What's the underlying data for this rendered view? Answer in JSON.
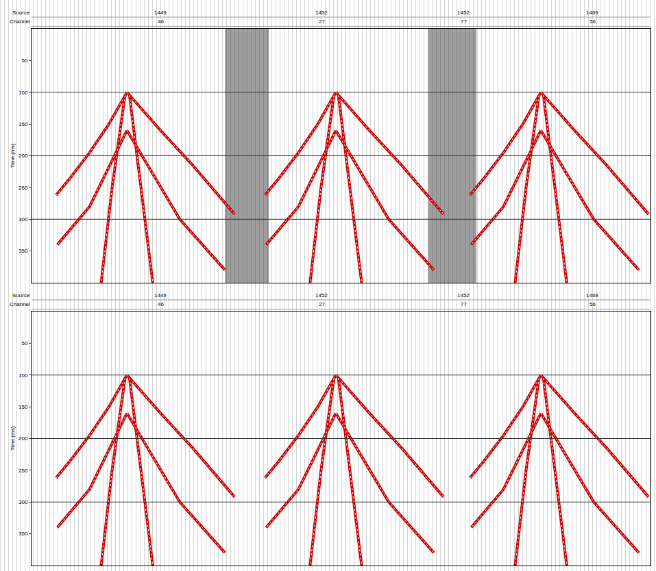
{
  "chart_data": [
    {
      "type": "line",
      "header": [
        {
          "label": "Source",
          "values": [
            {
              "x": 200,
              "text": "1449"
            },
            {
              "x": 450,
              "text": "1452"
            },
            {
              "x": 670,
              "text": "1452"
            },
            {
              "x": 870,
              "text": "1469"
            }
          ]
        },
        {
          "label": "Channel",
          "values": [
            {
              "x": 200,
              "text": "46"
            },
            {
              "x": 450,
              "text": "27"
            },
            {
              "x": 670,
              "text": "77"
            },
            {
              "x": 870,
              "text": "56"
            }
          ]
        }
      ],
      "ylabel": "Time (ms)",
      "xlim": [
        0,
        960
      ],
      "ylim": [
        0,
        400
      ],
      "yticks": [
        50,
        100,
        150,
        200,
        250,
        300,
        350
      ],
      "grid": true,
      "grid_lines": [
        100,
        200,
        300
      ],
      "tick_labels": "y",
      "color": "#cc0000",
      "noise_zones": [
        [
          300,
          368
        ],
        [
          615,
          690
        ]
      ],
      "events": [
        {
          "x": [
            148,
            120,
            90,
            60,
            38
          ],
          "y": [
            100,
            150,
            195,
            235,
            262
          ]
        },
        {
          "x": [
            148,
            200,
            250,
            300,
            315
          ],
          "y": [
            100,
            160,
            215,
            275,
            292
          ]
        },
        {
          "x": [
            145,
            125,
            108
          ],
          "y": [
            105,
            250,
            400
          ]
        },
        {
          "x": [
            152,
            170,
            188
          ],
          "y": [
            105,
            250,
            400
          ]
        },
        {
          "x": [
            148,
            90,
            40
          ],
          "y": [
            160,
            280,
            340
          ]
        },
        {
          "x": [
            148,
            230,
            300
          ],
          "y": [
            160,
            300,
            380
          ]
        },
        {
          "x": [
            472,
            444,
            414,
            384,
            362
          ],
          "y": [
            100,
            150,
            195,
            235,
            262
          ]
        },
        {
          "x": [
            472,
            524,
            574,
            624,
            639
          ],
          "y": [
            100,
            160,
            215,
            275,
            292
          ]
        },
        {
          "x": [
            469,
            449,
            432
          ],
          "y": [
            105,
            250,
            400
          ]
        },
        {
          "x": [
            476,
            494,
            512
          ],
          "y": [
            105,
            250,
            400
          ]
        },
        {
          "x": [
            472,
            414,
            364
          ],
          "y": [
            160,
            280,
            340
          ]
        },
        {
          "x": [
            472,
            554,
            624
          ],
          "y": [
            160,
            300,
            380
          ]
        },
        {
          "x": [
            790,
            762,
            732,
            702,
            680
          ],
          "y": [
            100,
            150,
            195,
            235,
            262
          ]
        },
        {
          "x": [
            790,
            842,
            892,
            942,
            957
          ],
          "y": [
            100,
            160,
            215,
            275,
            292
          ]
        },
        {
          "x": [
            787,
            767,
            750
          ],
          "y": [
            105,
            250,
            400
          ]
        },
        {
          "x": [
            794,
            812,
            830
          ],
          "y": [
            105,
            250,
            400
          ]
        },
        {
          "x": [
            790,
            732,
            682
          ],
          "y": [
            160,
            280,
            340
          ]
        },
        {
          "x": [
            790,
            872,
            942
          ],
          "y": [
            160,
            300,
            380
          ]
        }
      ]
    },
    {
      "type": "line",
      "header": [
        {
          "label": "Source",
          "values": [
            {
              "x": 200,
              "text": "1449"
            },
            {
              "x": 450,
              "text": "1452"
            },
            {
              "x": 670,
              "text": "1452"
            },
            {
              "x": 870,
              "text": "1469"
            }
          ]
        },
        {
          "label": "Channel",
          "values": [
            {
              "x": 200,
              "text": "46"
            },
            {
              "x": 450,
              "text": "27"
            },
            {
              "x": 670,
              "text": "77"
            },
            {
              "x": 870,
              "text": "56"
            }
          ]
        }
      ],
      "ylabel": "Time (ms)",
      "xlim": [
        0,
        960
      ],
      "ylim": [
        0,
        400
      ],
      "yticks": [
        50,
        100,
        150,
        200,
        250,
        300,
        350
      ],
      "grid": true,
      "grid_lines": [
        100,
        200,
        300
      ],
      "tick_labels": "y",
      "color": "#cc0000",
      "noise_zones": [],
      "events": [
        {
          "x": [
            148,
            120,
            90,
            60,
            38
          ],
          "y": [
            100,
            150,
            195,
            235,
            262
          ]
        },
        {
          "x": [
            148,
            200,
            250,
            300,
            315
          ],
          "y": [
            100,
            160,
            215,
            275,
            292
          ]
        },
        {
          "x": [
            145,
            125,
            108
          ],
          "y": [
            105,
            250,
            400
          ]
        },
        {
          "x": [
            152,
            170,
            188
          ],
          "y": [
            105,
            250,
            400
          ]
        },
        {
          "x": [
            148,
            90,
            40
          ],
          "y": [
            160,
            280,
            340
          ]
        },
        {
          "x": [
            148,
            230,
            300
          ],
          "y": [
            160,
            300,
            380
          ]
        },
        {
          "x": [
            472,
            444,
            414,
            384,
            362
          ],
          "y": [
            100,
            150,
            195,
            235,
            262
          ]
        },
        {
          "x": [
            472,
            524,
            574,
            624,
            639
          ],
          "y": [
            100,
            160,
            215,
            275,
            292
          ]
        },
        {
          "x": [
            469,
            449,
            432
          ],
          "y": [
            105,
            250,
            400
          ]
        },
        {
          "x": [
            476,
            494,
            512
          ],
          "y": [
            105,
            250,
            400
          ]
        },
        {
          "x": [
            472,
            414,
            364
          ],
          "y": [
            160,
            280,
            340
          ]
        },
        {
          "x": [
            472,
            554,
            624
          ],
          "y": [
            160,
            300,
            380
          ]
        },
        {
          "x": [
            790,
            762,
            732,
            702,
            680
          ],
          "y": [
            100,
            150,
            195,
            235,
            262
          ]
        },
        {
          "x": [
            790,
            842,
            892,
            942,
            957
          ],
          "y": [
            100,
            160,
            215,
            275,
            292
          ]
        },
        {
          "x": [
            787,
            767,
            750
          ],
          "y": [
            105,
            250,
            400
          ]
        },
        {
          "x": [
            794,
            812,
            830
          ],
          "y": [
            105,
            250,
            400
          ]
        },
        {
          "x": [
            790,
            732,
            682
          ],
          "y": [
            160,
            280,
            340
          ]
        },
        {
          "x": [
            790,
            872,
            942
          ],
          "y": [
            160,
            300,
            380
          ]
        }
      ]
    }
  ]
}
